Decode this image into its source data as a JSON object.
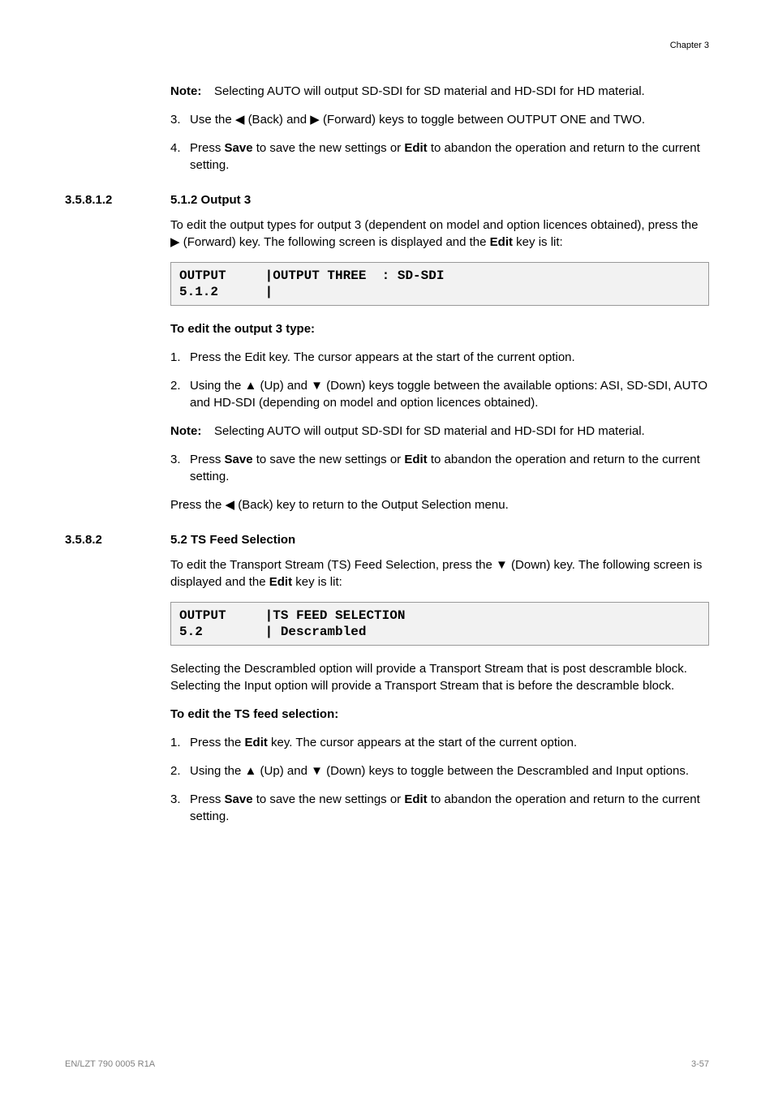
{
  "chapter": "Chapter 3",
  "topBlock": {
    "noteLabel": "Note:",
    "noteText": "Selecting AUTO will output SD-SDI for SD material and HD-SDI for HD material.",
    "step3num": "3.",
    "step3": "Use the ◀ (Back) and ▶ (Forward) keys to toggle between OUTPUT ONE and TWO.",
    "step4num": "4.",
    "step4a": "Press ",
    "step4save": "Save",
    "step4b": " to save the new settings or ",
    "step4edit": "Edit",
    "step4c": " to abandon the operation and return to the current setting."
  },
  "sec1": {
    "num": "3.5.8.1.2",
    "title": "5.1.2 Output 3",
    "para1a": "To edit the output types for output 3 (dependent on model and option licences obtained), press the ▶ (Forward) key. The following screen is displayed and the ",
    "para1editWord": "Edit",
    "para1b": " key is lit:",
    "lcd": "OUTPUT     |OUTPUT THREE  : SD-SDI\n5.1.2      |",
    "subhead": "To edit the output 3 type:",
    "s1num": "1.",
    "s1": "Press the Edit key. The cursor appears at the start of the current option.",
    "s2num": "2.",
    "s2": "Using the ▲ (Up) and ▼ (Down) keys toggle between the available options: ASI, SD-SDI, AUTO and HD-SDI (depending on model and option licences obtained).",
    "noteLabel": "Note:",
    "noteText": "Selecting AUTO will output SD-SDI for SD material and HD-SDI for HD material.",
    "s3num": "3.",
    "s3a": "Press ",
    "s3save": "Save",
    "s3b": " to save the new settings or ",
    "s3edit": "Edit",
    "s3c": " to abandon the operation and return to the current setting.",
    "para2": "Press the ◀ (Back) key to return to the Output Selection menu."
  },
  "sec2": {
    "num": "3.5.8.2",
    "title": "5.2 TS Feed Selection",
    "para1a": "To edit the Transport Stream (TS) Feed Selection, press the ▼ (Down) key. The following screen is displayed and the ",
    "para1editWord": "Edit",
    "para1b": " key is lit:",
    "lcd": "OUTPUT     |TS FEED SELECTION\n5.2        | Descrambled",
    "para2": "Selecting the Descrambled option will provide a Transport Stream that is post descramble block. Selecting the Input option will provide a Transport Stream that is before the descramble block.",
    "subhead": "To edit the TS feed selection:",
    "s1num": "1.",
    "s1a": "Press the ",
    "s1edit": "Edit",
    "s1b": " key. The cursor appears at the start of the current option.",
    "s2num": "2.",
    "s2": "Using the ▲ (Up) and ▼ (Down) keys to toggle between the Descrambled and Input options.",
    "s3num": "3.",
    "s3a": "Press ",
    "s3save": "Save",
    "s3b": " to save the new settings or ",
    "s3edit": "Edit",
    "s3c": " to abandon the operation and return to the current setting."
  },
  "footer": {
    "left": "EN/LZT 790 0005 R1A",
    "right": "3-57"
  },
  "styling": {
    "pageWidth": 954,
    "pageHeight": 1350,
    "background": "#ffffff",
    "textColor": "#000000",
    "lcdBorder": "#999999",
    "lcdBg": "#f2f2f2",
    "footerColor": "#808080",
    "bodyFontSize": 15,
    "chapterFontSize": 11,
    "footerFontSize": 11,
    "lcdFontSize": 16,
    "leftIndent": 130
  }
}
